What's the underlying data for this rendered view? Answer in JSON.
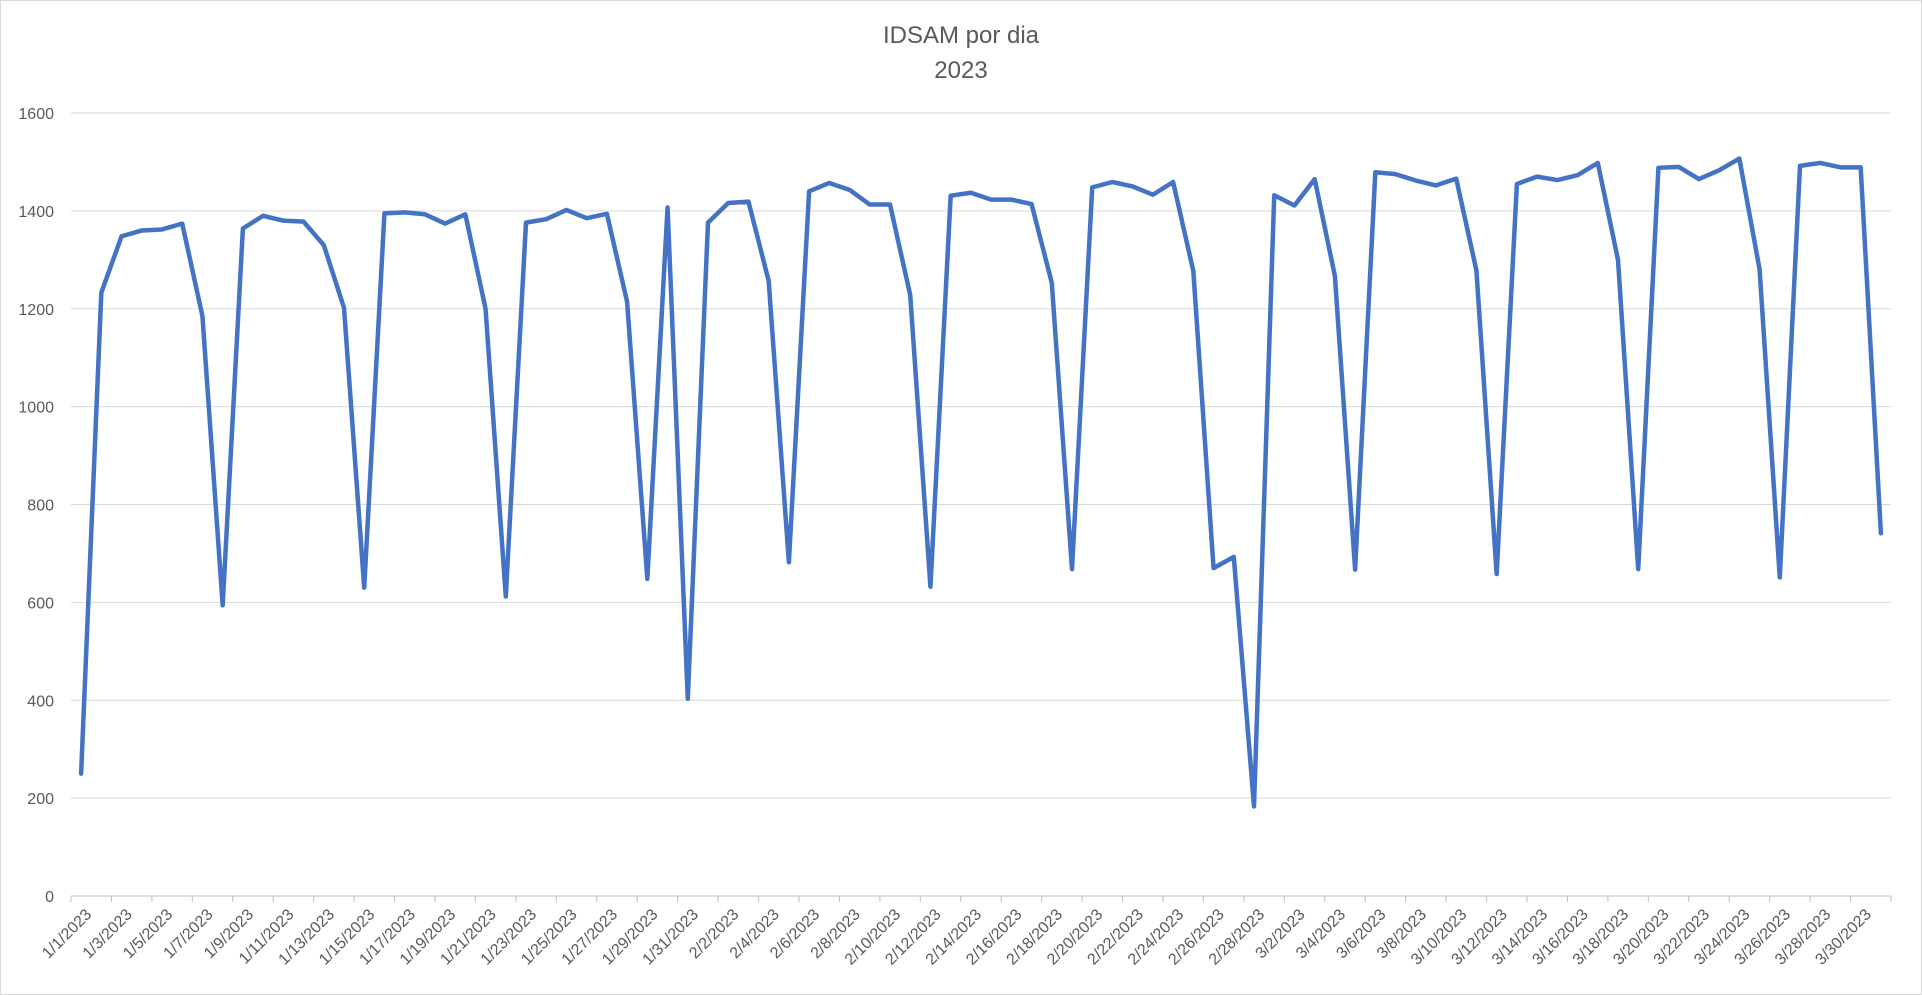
{
  "chart_data": {
    "type": "line",
    "title": "IDSAM por dia",
    "subtitle": "2023",
    "xlabel": "",
    "ylabel": "",
    "ylim": [
      0,
      1600
    ],
    "yticks": [
      0,
      200,
      400,
      600,
      800,
      1000,
      1200,
      1400,
      1600
    ],
    "grid": true,
    "legend": "none",
    "colors": {
      "line": "#4472C4",
      "grid": "#d9d9d9",
      "text": "#595959"
    },
    "x_tick_labels": [
      "1/1/2023",
      "1/3/2023",
      "1/5/2023",
      "1/7/2023",
      "1/9/2023",
      "1/11/2023",
      "1/13/2023",
      "1/15/2023",
      "1/17/2023",
      "1/19/2023",
      "1/21/2023",
      "1/23/2023",
      "1/25/2023",
      "1/27/2023",
      "1/29/2023",
      "1/31/2023",
      "2/2/2023",
      "2/4/2023",
      "2/6/2023",
      "2/8/2023",
      "2/10/2023",
      "2/12/2023",
      "2/14/2023",
      "2/16/2023",
      "2/18/2023",
      "2/20/2023",
      "2/22/2023",
      "2/24/2023",
      "2/26/2023",
      "2/28/2023",
      "3/2/2023",
      "3/4/2023",
      "3/6/2023",
      "3/8/2023",
      "3/10/2023",
      "3/12/2023",
      "3/14/2023",
      "3/16/2023",
      "3/18/2023",
      "3/20/2023",
      "3/22/2023",
      "3/24/2023",
      "3/26/2023",
      "3/28/2023",
      "3/30/2023"
    ],
    "x": [
      "1/1/2023",
      "1/2/2023",
      "1/3/2023",
      "1/4/2023",
      "1/5/2023",
      "1/6/2023",
      "1/7/2023",
      "1/8/2023",
      "1/9/2023",
      "1/10/2023",
      "1/11/2023",
      "1/12/2023",
      "1/13/2023",
      "1/14/2023",
      "1/15/2023",
      "1/16/2023",
      "1/17/2023",
      "1/18/2023",
      "1/19/2023",
      "1/20/2023",
      "1/21/2023",
      "1/22/2023",
      "1/23/2023",
      "1/24/2023",
      "1/25/2023",
      "1/26/2023",
      "1/27/2023",
      "1/28/2023",
      "1/29/2023",
      "1/30/2023",
      "1/31/2023",
      "2/1/2023",
      "2/2/2023",
      "2/3/2023",
      "2/4/2023",
      "2/5/2023",
      "2/6/2023",
      "2/7/2023",
      "2/8/2023",
      "2/9/2023",
      "2/10/2023",
      "2/11/2023",
      "2/12/2023",
      "2/13/2023",
      "2/14/2023",
      "2/15/2023",
      "2/16/2023",
      "2/17/2023",
      "2/18/2023",
      "2/19/2023",
      "2/20/2023",
      "2/21/2023",
      "2/22/2023",
      "2/23/2023",
      "2/24/2023",
      "2/25/2023",
      "2/26/2023",
      "2/27/2023",
      "2/28/2023",
      "3/1/2023",
      "3/2/2023",
      "3/3/2023",
      "3/4/2023",
      "3/5/2023",
      "3/6/2023",
      "3/7/2023",
      "3/8/2023",
      "3/9/2023",
      "3/10/2023",
      "3/11/2023",
      "3/12/2023",
      "3/13/2023",
      "3/14/2023",
      "3/15/2023",
      "3/16/2023",
      "3/17/2023",
      "3/18/2023",
      "3/19/2023",
      "3/20/2023",
      "3/21/2023",
      "3/22/2023",
      "3/23/2023",
      "3/24/2023",
      "3/25/2023",
      "3/26/2023",
      "3/27/2023",
      "3/28/2023",
      "3/29/2023",
      "3/30/2023",
      "3/31/2023"
    ],
    "series": [
      {
        "name": "",
        "values": [
          250,
          1233,
          1348,
          1360,
          1362,
          1374,
          1185,
          594,
          1364,
          1390,
          1380,
          1378,
          1330,
          1202,
          630,
          1395,
          1397,
          1393,
          1374,
          1393,
          1200,
          612,
          1376,
          1383,
          1402,
          1385,
          1394,
          1214,
          648,
          1407,
          403,
          1376,
          1416,
          1419,
          1257,
          682,
          1440,
          1457,
          1443,
          1413,
          1413,
          1228,
          632,
          1431,
          1437,
          1423,
          1423,
          1414,
          1253,
          668,
          1448,
          1459,
          1450,
          1433,
          1459,
          1277,
          670,
          693,
          183,
          1432,
          1411,
          1465,
          1267,
          667,
          1479,
          1475,
          1462,
          1452,
          1466,
          1278,
          658,
          1455,
          1470,
          1463,
          1473,
          1498,
          1300,
          668,
          1488,
          1490,
          1465,
          1483,
          1507,
          1281,
          651,
          1492,
          1498,
          1489,
          1489,
          741
        ]
      }
    ]
  }
}
